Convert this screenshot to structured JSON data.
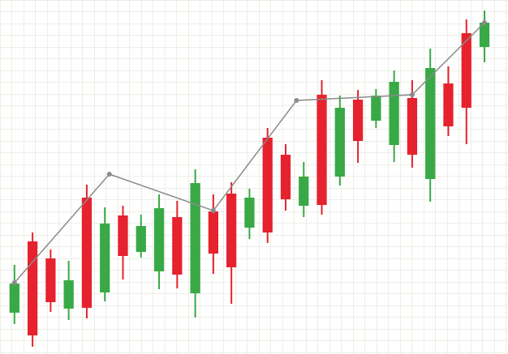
{
  "chart_data": [
    {
      "type": "candlestick",
      "xlim": [
        -0.8,
        27.3
      ],
      "ylim": [
        0,
        437
      ],
      "grid": true,
      "up_color": "#38a946",
      "down_color": "#e5222e",
      "open": [
        51,
        139,
        118,
        56,
        193,
        76,
        171,
        126,
        102,
        169,
        75,
        176,
        198,
        156,
        267,
        246,
        183,
        320,
        219,
        314,
        288,
        258,
        316,
        216,
        334,
        396,
        379
      ],
      "high": [
        110,
        150,
        129,
        115,
        209,
        181,
        183,
        172,
        197,
        189,
        228,
        197,
        212,
        204,
        279,
        259,
        237,
        338,
        319,
        326,
        327,
        350,
        338,
        377,
        355,
        413,
        424
      ],
      "low": [
        37,
        9,
        52,
        42,
        44,
        65,
        92,
        119,
        80,
        81,
        45,
        99,
        62,
        142,
        137,
        177,
        169,
        172,
        208,
        236,
        279,
        237,
        230,
        188,
        269,
        259,
        360
      ],
      "close": [
        87,
        23,
        64,
        91,
        57,
        161,
        121,
        158,
        180,
        98,
        211,
        124,
        107,
        193,
        150,
        191,
        219,
        184,
        304,
        263,
        319,
        336,
        246,
        353,
        281,
        304,
        409
      ]
    },
    {
      "type": "line",
      "xlim": [
        -0.8,
        27.3
      ],
      "ylim": [
        0,
        437
      ],
      "color": "#8a8a8a",
      "x": [
        0,
        5.25,
        11,
        15.6,
        22,
        26
      ],
      "values": [
        88,
        222,
        177,
        313,
        320,
        409
      ]
    }
  ]
}
